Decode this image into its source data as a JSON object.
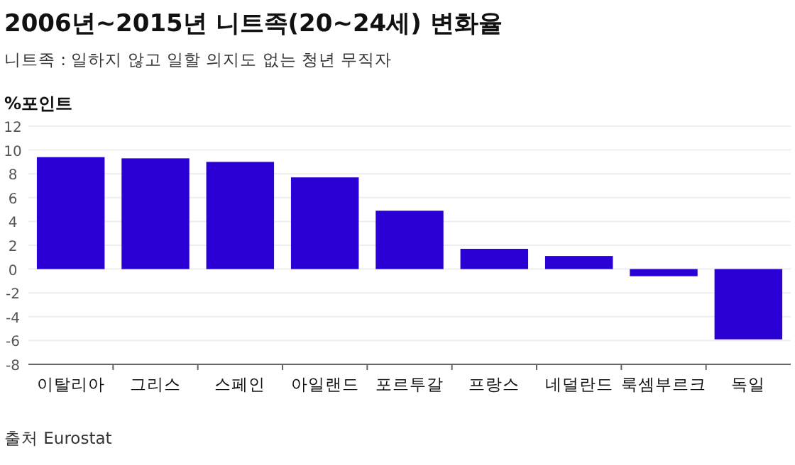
{
  "chart_data": {
    "type": "bar",
    "title": "2006년~2015년 니트족(20~24세) 변화율",
    "subtitle": "니트족 : 일하지 않고 일할 의지도 없는 청년 무직자",
    "ylabel": "%포인트",
    "categories": [
      "이탈리아",
      "그리스",
      "스페인",
      "아일랜드",
      "포르투갈",
      "프랑스",
      "네덜란드",
      "룩셈부르크",
      "독일"
    ],
    "values": [
      9.4,
      9.3,
      9.0,
      7.7,
      4.9,
      1.7,
      1.1,
      -0.6,
      -5.9
    ],
    "color": "#2a00d5",
    "ylim": [
      -8,
      12
    ],
    "yticks": [
      -8,
      -6,
      -4,
      -2,
      0,
      2,
      4,
      6,
      8,
      10,
      12
    ],
    "grid": "y",
    "annotations": [
      "출처 Eurostat"
    ]
  }
}
